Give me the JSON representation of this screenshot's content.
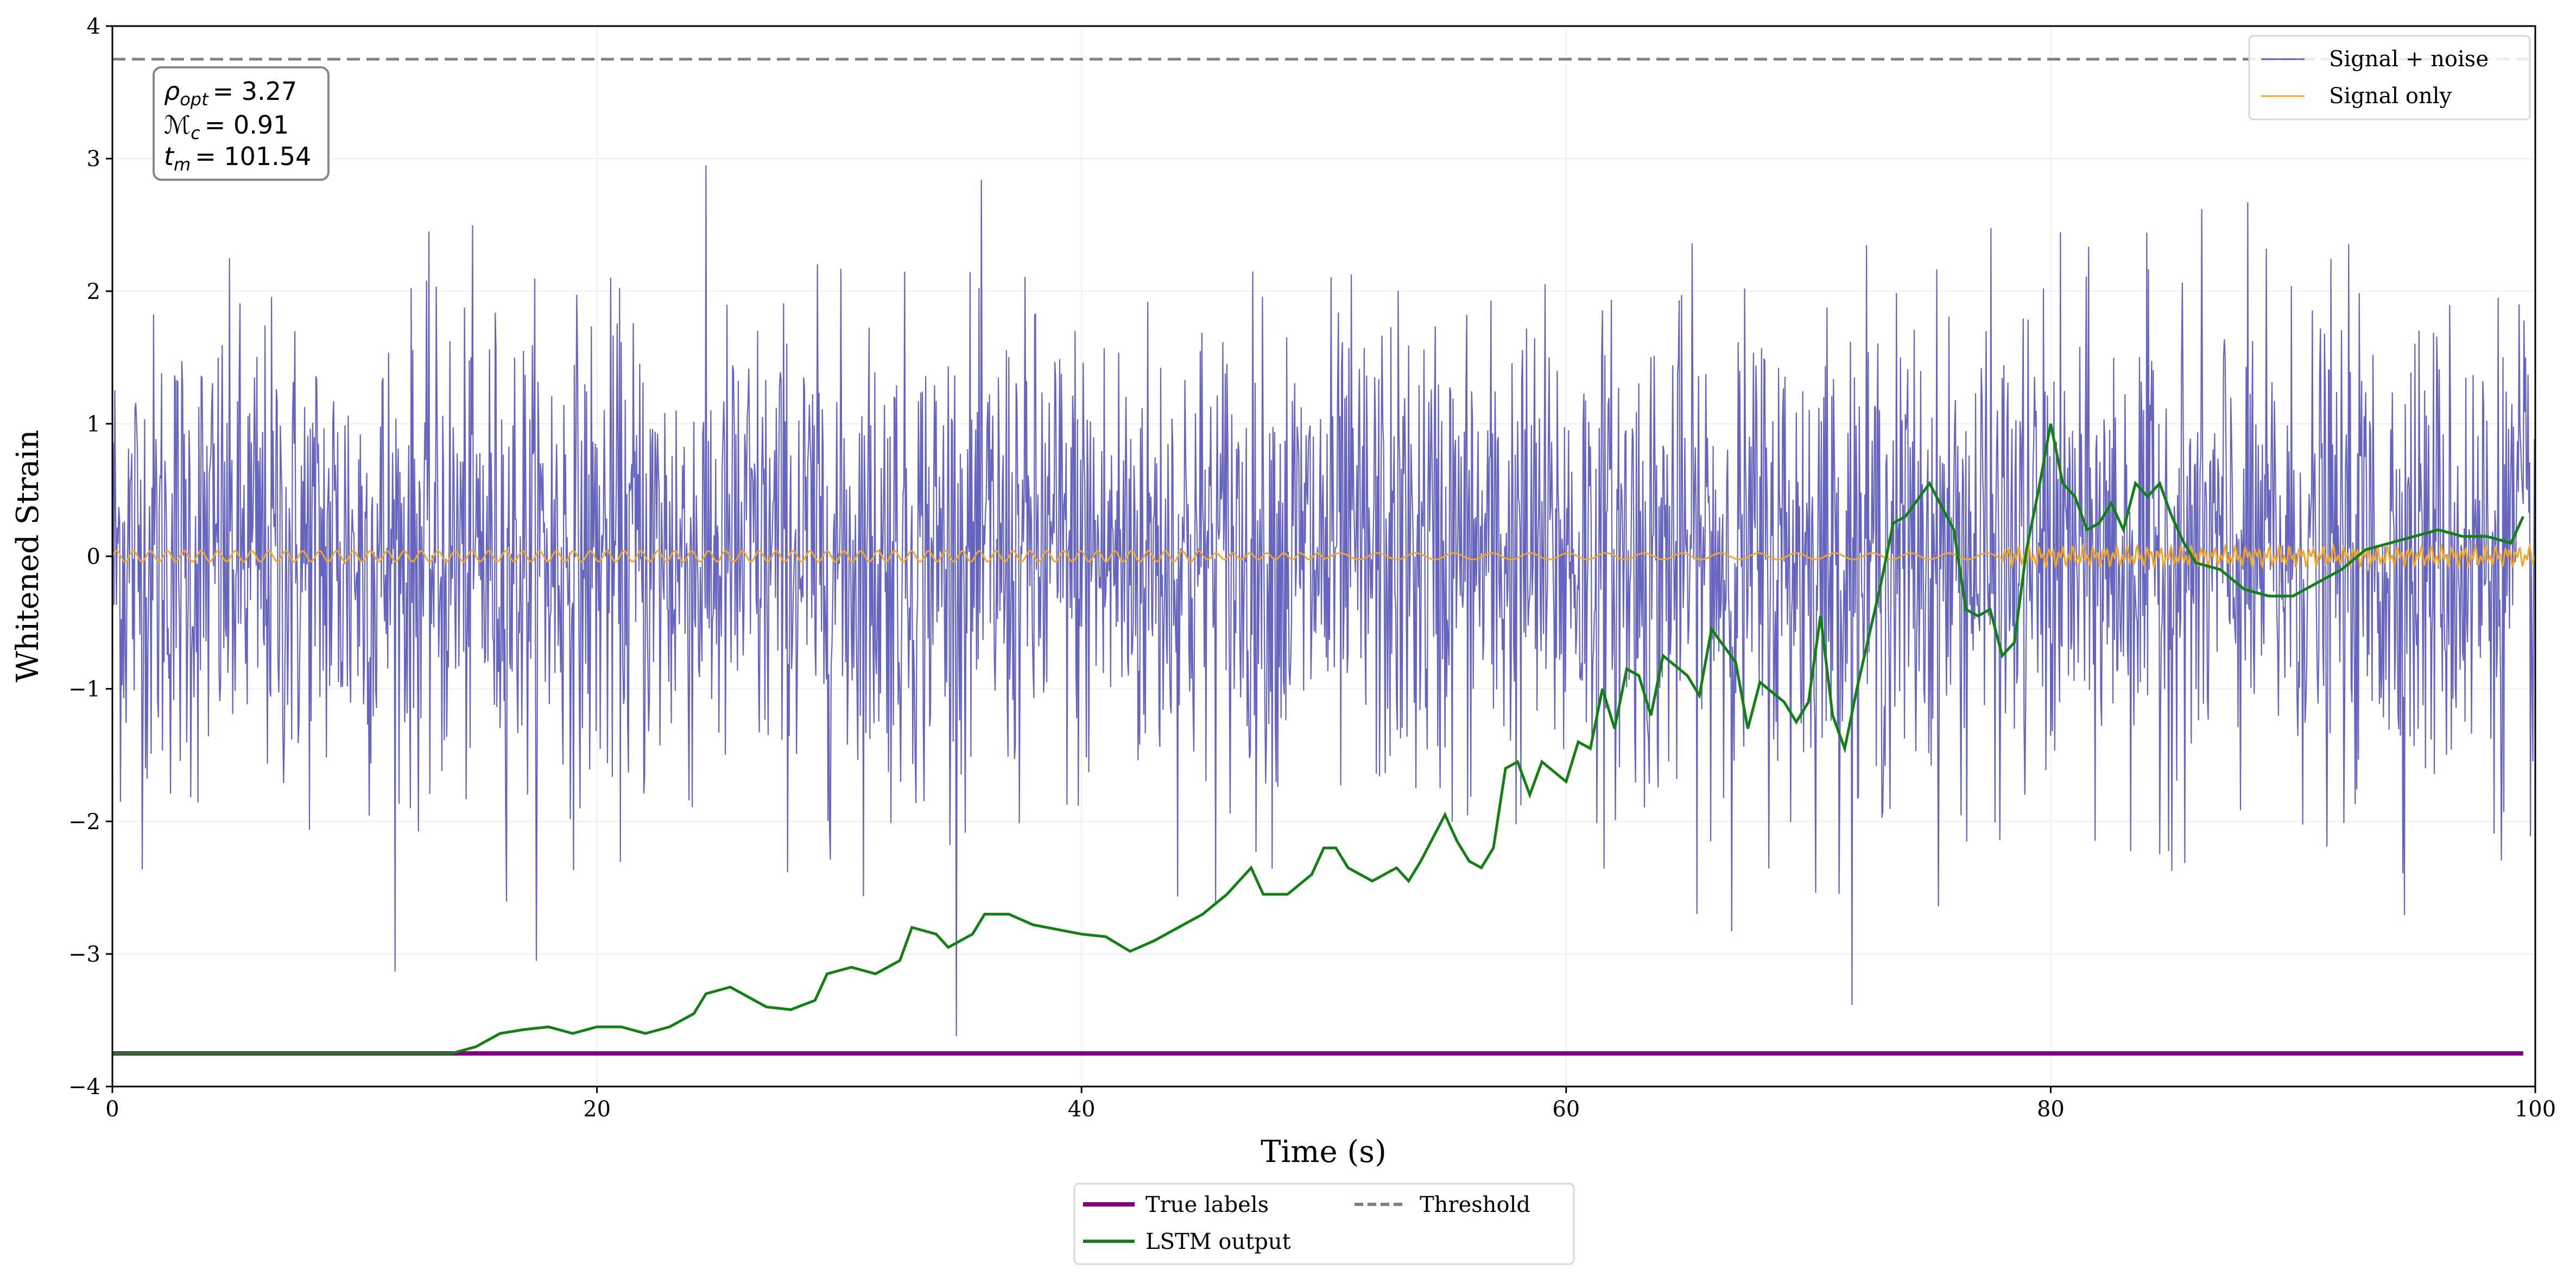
{
  "chart_data": {
    "type": "line",
    "xlabel": "Time (s)",
    "ylabel": "Whitened Strain",
    "xlim": [
      0,
      100
    ],
    "ylim": [
      -4,
      4
    ],
    "xticks": [
      0,
      20,
      40,
      60,
      80,
      100
    ],
    "yticks": [
      -4,
      -3,
      -2,
      -1,
      0,
      1,
      2,
      3,
      4
    ],
    "grid": true,
    "threshold": 3.75,
    "true_label_level": -3.75,
    "colors": {
      "signal_noise": "#3f3fb0",
      "signal_only": "#f5a623",
      "true_labels": "#800080",
      "lstm": "#138013",
      "threshold": "#808080"
    },
    "annotation": {
      "rho": "ρ",
      "rho_sub": "opt",
      "rho_val": "= 3.27",
      "mc": "ℳ",
      "mc_sub": "c",
      "mc_val": "= 0.91",
      "tm": "t",
      "tm_sub": "m",
      "tm_val": "= 101.54"
    },
    "legend_upper": {
      "placement": "top-right",
      "items": [
        "Signal + noise",
        "Signal only"
      ]
    },
    "legend_lower": {
      "placement": "below-center",
      "items": [
        "True labels",
        "LSTM output",
        "Threshold"
      ]
    },
    "signal_noise": {
      "description_std": 0.9,
      "samples": 3000
    },
    "signal_only": {
      "amplitude": 0.04
    },
    "series": [
      {
        "name": "True labels",
        "x": [
          0,
          99.5
        ],
        "y": [
          -3.75,
          -3.75
        ]
      },
      {
        "name": "LSTM output",
        "x": [
          0,
          14,
          15,
          16,
          17,
          18,
          19,
          20,
          21,
          22,
          23,
          24,
          24.5,
          25.5,
          26,
          27,
          28,
          29,
          29.5,
          30.5,
          31.5,
          32.5,
          33,
          34,
          34.5,
          35.5,
          36,
          37,
          38,
          40,
          41,
          42,
          43,
          44,
          45,
          46,
          47,
          47.5,
          48.5,
          49.5,
          50,
          50.5,
          51,
          52,
          53,
          53.5,
          54,
          55,
          55.5,
          56,
          56.5,
          57,
          57.5,
          58,
          58.5,
          59,
          60,
          60.5,
          61,
          61.5,
          62,
          62.5,
          63,
          63.5,
          64,
          65,
          65.5,
          66,
          67,
          67.5,
          68,
          69,
          69.5,
          70,
          70.5,
          71,
          71.5,
          72,
          73,
          73.5,
          74,
          75,
          76,
          76.5,
          77,
          77.5,
          78,
          78.5,
          79,
          79.5,
          80,
          80.5,
          81,
          81.5,
          82,
          82.5,
          83,
          83.5,
          84,
          84.5,
          85,
          85.5,
          86,
          87,
          88,
          89,
          90,
          91,
          92,
          93,
          94,
          95,
          96,
          97,
          98,
          99,
          99.5
        ],
        "y": [
          -3.75,
          -3.75,
          -3.7,
          -3.6,
          -3.57,
          -3.55,
          -3.6,
          -3.55,
          -3.55,
          -3.6,
          -3.55,
          -3.45,
          -3.3,
          -3.25,
          -3.3,
          -3.4,
          -3.42,
          -3.35,
          -3.15,
          -3.1,
          -3.15,
          -3.05,
          -2.8,
          -2.85,
          -2.95,
          -2.85,
          -2.7,
          -2.7,
          -2.78,
          -2.85,
          -2.87,
          -2.98,
          -2.9,
          -2.8,
          -2.7,
          -2.55,
          -2.35,
          -2.55,
          -2.55,
          -2.4,
          -2.2,
          -2.2,
          -2.35,
          -2.45,
          -2.35,
          -2.45,
          -2.3,
          -1.95,
          -2.15,
          -2.3,
          -2.35,
          -2.2,
          -1.6,
          -1.55,
          -1.8,
          -1.55,
          -1.7,
          -1.4,
          -1.45,
          -1.0,
          -1.3,
          -0.85,
          -0.9,
          -1.2,
          -0.75,
          -0.9,
          -1.05,
          -0.55,
          -0.8,
          -1.3,
          -0.95,
          -1.1,
          -1.25,
          -1.1,
          -0.45,
          -1.2,
          -1.45,
          -1.0,
          -0.2,
          0.25,
          0.3,
          0.55,
          0.2,
          -0.4,
          -0.45,
          -0.4,
          -0.75,
          -0.65,
          0.05,
          0.5,
          1.0,
          0.55,
          0.45,
          0.2,
          0.25,
          0.4,
          0.2,
          0.55,
          0.45,
          0.55,
          0.3,
          0.1,
          -0.05,
          -0.1,
          -0.25,
          -0.3,
          -0.3,
          -0.2,
          -0.1,
          0.05,
          0.1,
          0.15,
          0.2,
          0.15,
          0.15,
          0.1,
          0.3
        ]
      }
    ]
  }
}
